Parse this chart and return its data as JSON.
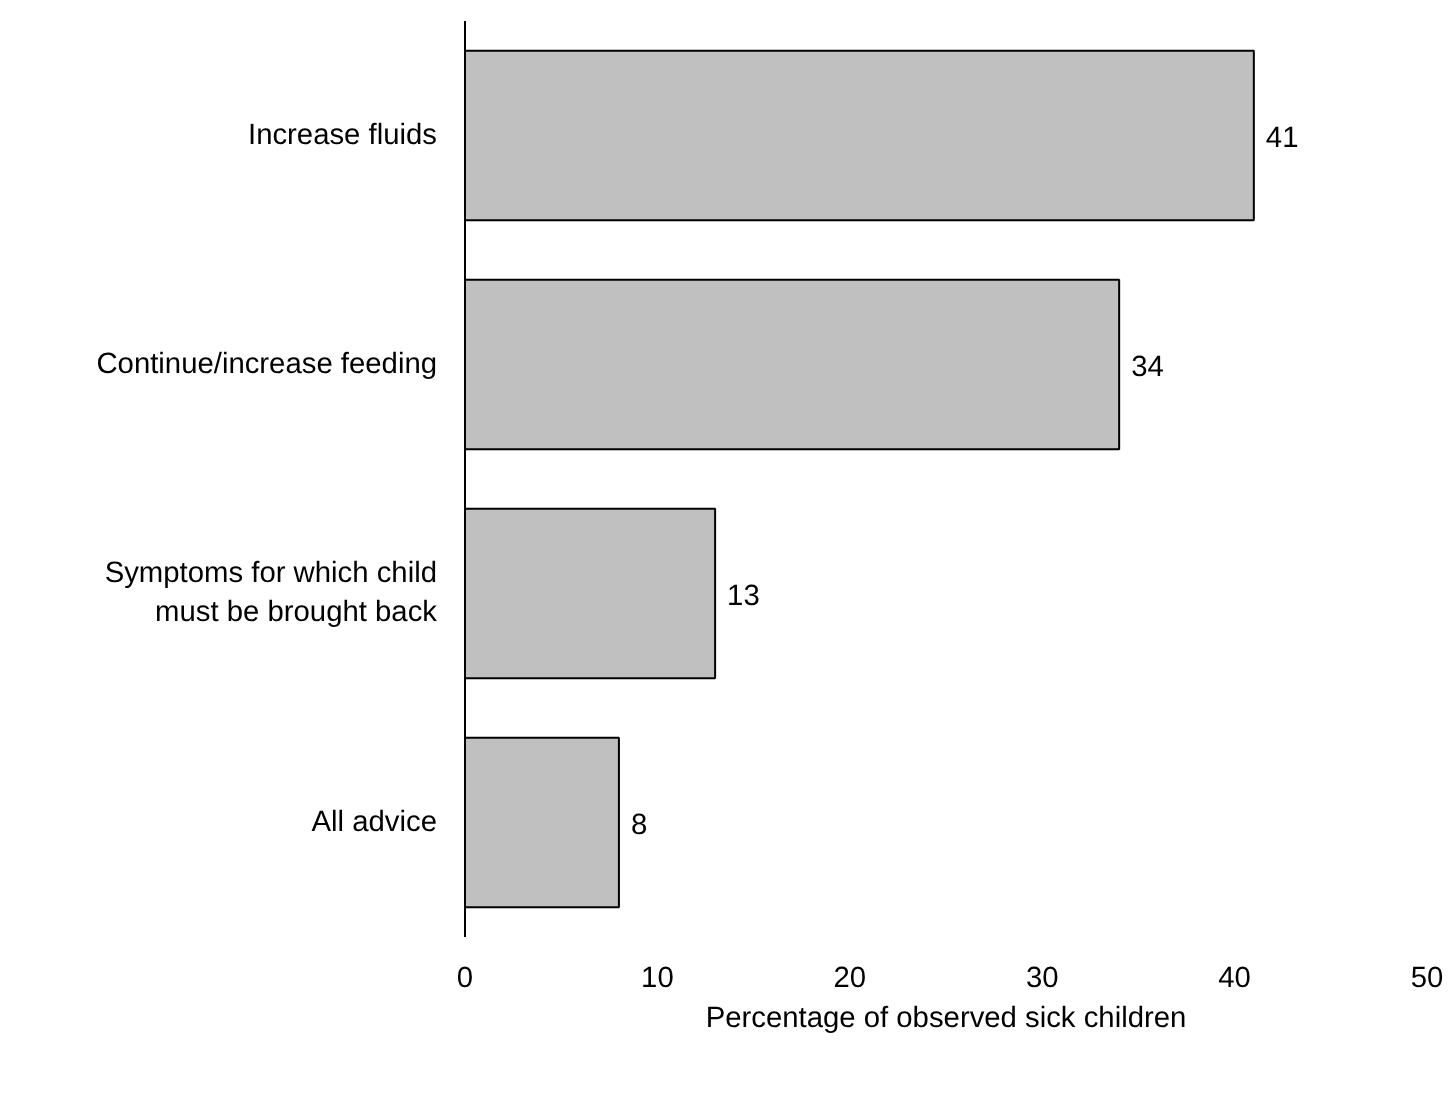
{
  "chart_data": {
    "type": "bar",
    "orientation": "horizontal",
    "categories": [
      "Increase fluids",
      "Continue/increase feeding",
      "Symptoms for which child must be brought back",
      "All advice"
    ],
    "values": [
      41,
      34,
      13,
      8
    ],
    "color": "#c0c0c0",
    "xlim": [
      0,
      50
    ],
    "xticks": [
      0,
      10,
      20,
      30,
      40,
      50
    ],
    "xlabel": "Percentage of observed sick children",
    "data_labels": true,
    "grid": false
  }
}
